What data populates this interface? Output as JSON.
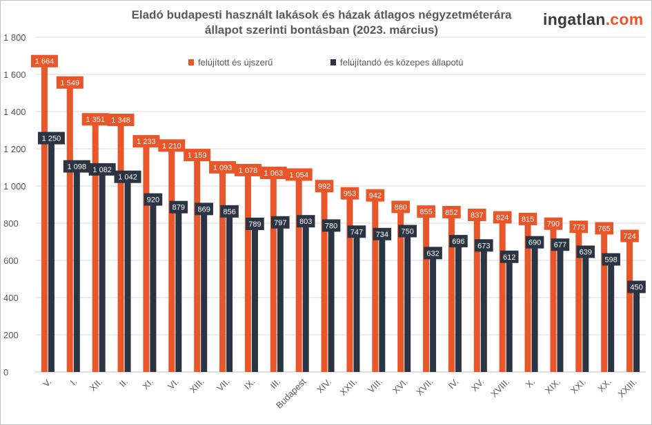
{
  "chart_data": {
    "type": "bar",
    "title": "Eladó budapesti használt lakások és házak átlagos négyzetméterára állapot szerinti bontásban (2023. március)",
    "title_lines": [
      "Eladó budapesti használt lakások és házak átlagos négyzetméterára",
      "állapot szerinti bontásban (2023. március)"
    ],
    "categories": [
      "V.",
      "I.",
      "XII.",
      "II.",
      "XI.",
      "VI.",
      "XIII.",
      "VII.",
      "IX.",
      "III.",
      "Budapest",
      "XIV.",
      "XXII.",
      "VIII.",
      "XVI.",
      "XVII.",
      "IV.",
      "XV.",
      "XVIII.",
      "X.",
      "XIX.",
      "XXI.",
      "XX.",
      "XXIII."
    ],
    "series": [
      {
        "name": "felújított és újszerű",
        "color": "#e8562a",
        "values": [
          1664,
          1549,
          1351,
          1348,
          1233,
          1210,
          1159,
          1093,
          1078,
          1063,
          1054,
          992,
          953,
          942,
          880,
          855,
          852,
          837,
          824,
          815,
          790,
          773,
          765,
          724
        ],
        "labels": [
          "1 664",
          "1 549",
          "1 351",
          "1 348",
          "1 233",
          "1 210",
          "1 159",
          "1 093",
          "1 078",
          "1 063",
          "1 054",
          "992",
          "953",
          "942",
          "880",
          "855",
          "852",
          "837",
          "824",
          "815",
          "790",
          "773",
          "765",
          "724"
        ]
      },
      {
        "name": "felújítandó és közepes állapotú",
        "color": "#2a3442",
        "values": [
          1250,
          1098,
          1082,
          1042,
          920,
          879,
          869,
          856,
          789,
          797,
          803,
          780,
          747,
          734,
          750,
          632,
          696,
          673,
          612,
          690,
          677,
          639,
          598,
          450
        ],
        "labels": [
          "1 250",
          "1 098",
          "1 082",
          "1 042",
          "920",
          "879",
          "869",
          "856",
          "789",
          "797",
          "803",
          "780",
          "747",
          "734",
          "750",
          "632",
          "696",
          "673",
          "612",
          "690",
          "677",
          "639",
          "598",
          "450"
        ]
      }
    ],
    "ylim": [
      0,
      1800
    ],
    "yticks": [
      0,
      200,
      400,
      600,
      800,
      1000,
      1200,
      1400,
      1600,
      1800
    ],
    "ytick_labels": [
      "0",
      "200",
      "400",
      "600",
      "800",
      "1 000",
      "1 200",
      "1 400",
      "1 600",
      "1 800"
    ],
    "grid": true,
    "legend": "top-right"
  },
  "logo": {
    "text_main": "ingatlan",
    "text_accent": ".com"
  }
}
